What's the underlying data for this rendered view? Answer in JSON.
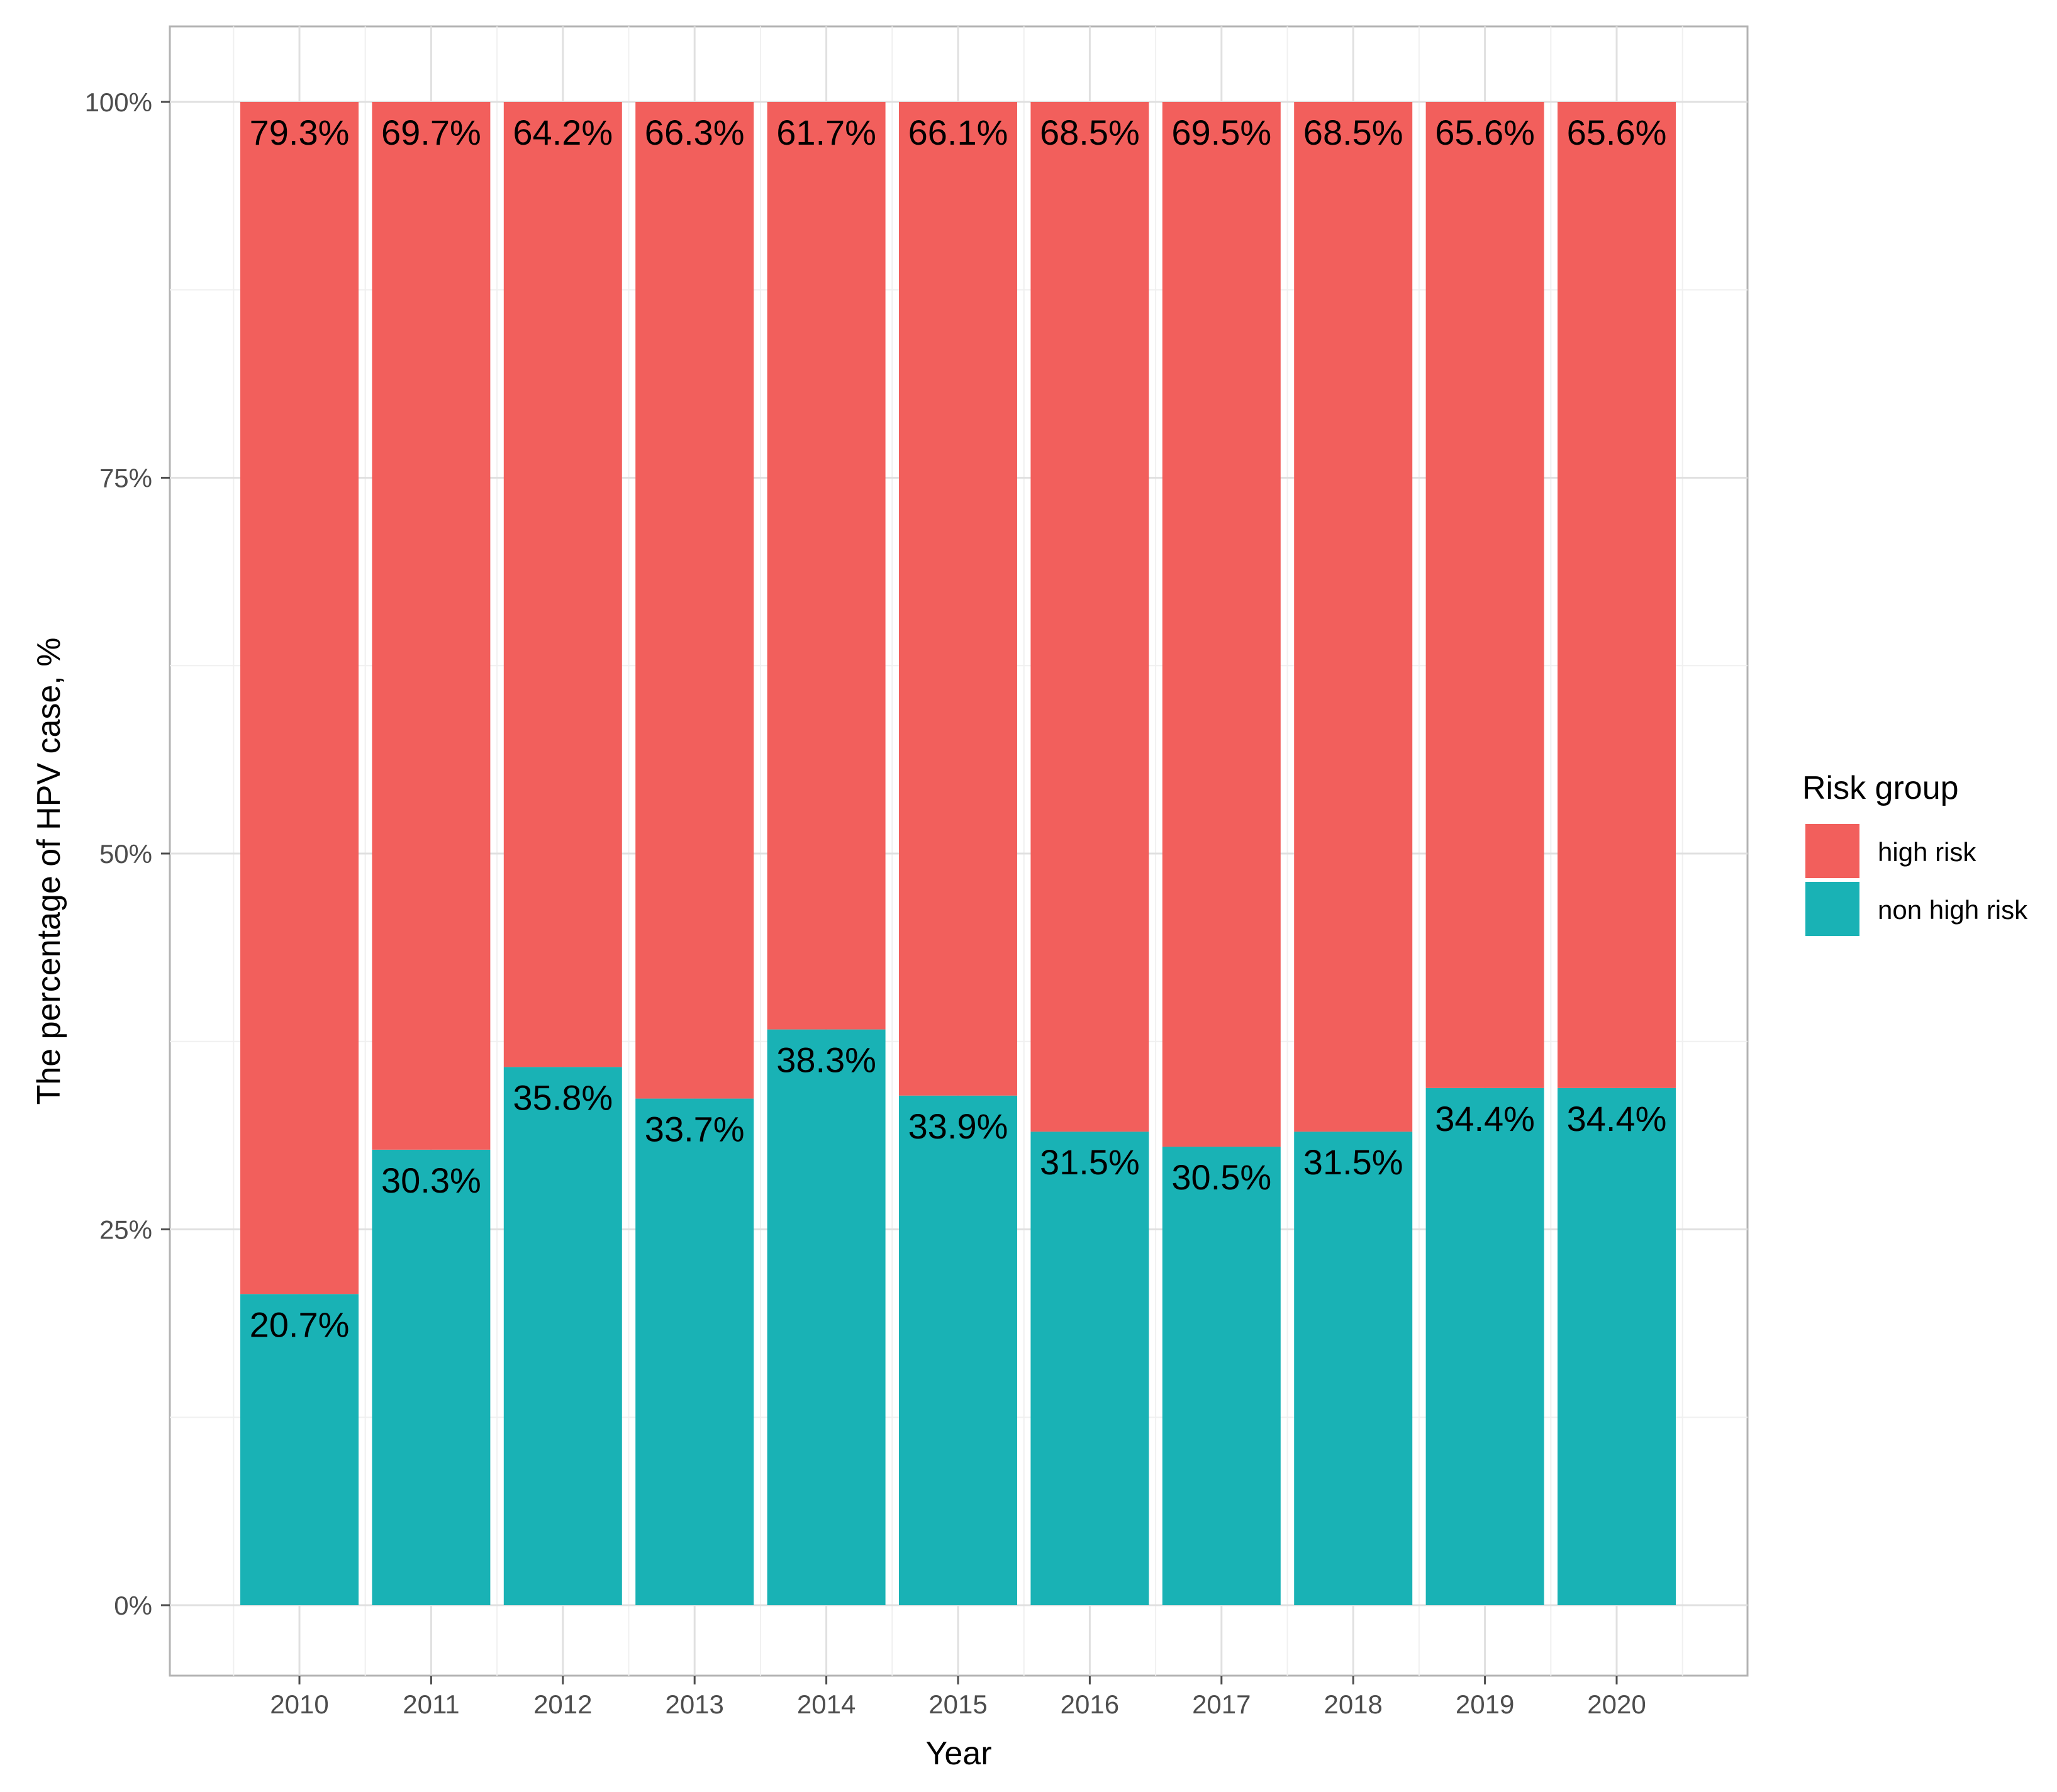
{
  "chart_data": {
    "type": "bar",
    "stacked": true,
    "xlabel": "Year",
    "ylabel": "The percentage of HPV case, %",
    "ylim": [
      0,
      100
    ],
    "y_ticks": [
      0,
      25,
      50,
      75,
      100
    ],
    "y_tick_labels": [
      "0%",
      "25%",
      "50%",
      "75%",
      "100%"
    ],
    "grid": true,
    "categories": [
      "2010",
      "2011",
      "2012",
      "2013",
      "2014",
      "2015",
      "2016",
      "2017",
      "2018",
      "2019",
      "2020"
    ],
    "series": [
      {
        "name": "non high risk",
        "color": "#19b2b5",
        "values": [
          20.7,
          30.3,
          35.8,
          33.7,
          38.3,
          33.9,
          31.5,
          30.5,
          31.5,
          34.4,
          34.4
        ],
        "labels": [
          "20.7%",
          "30.3%",
          "35.8%",
          "33.7%",
          "38.3%",
          "33.9%",
          "31.5%",
          "30.5%",
          "31.5%",
          "34.4%",
          "34.4%"
        ]
      },
      {
        "name": "high risk",
        "color": "#f25f5c",
        "values": [
          79.3,
          69.7,
          64.2,
          66.3,
          61.7,
          66.1,
          68.5,
          69.5,
          68.5,
          65.6,
          65.6
        ],
        "labels": [
          "79.3%",
          "69.7%",
          "64.2%",
          "66.3%",
          "61.7%",
          "66.1%",
          "68.5%",
          "69.5%",
          "68.5%",
          "65.6%",
          "65.6%"
        ]
      }
    ],
    "legend": {
      "title": "Risk group",
      "position": "right",
      "entries": [
        {
          "label": "high risk",
          "color": "#f25f5c"
        },
        {
          "label": "non high risk",
          "color": "#19b2b5"
        }
      ]
    }
  }
}
